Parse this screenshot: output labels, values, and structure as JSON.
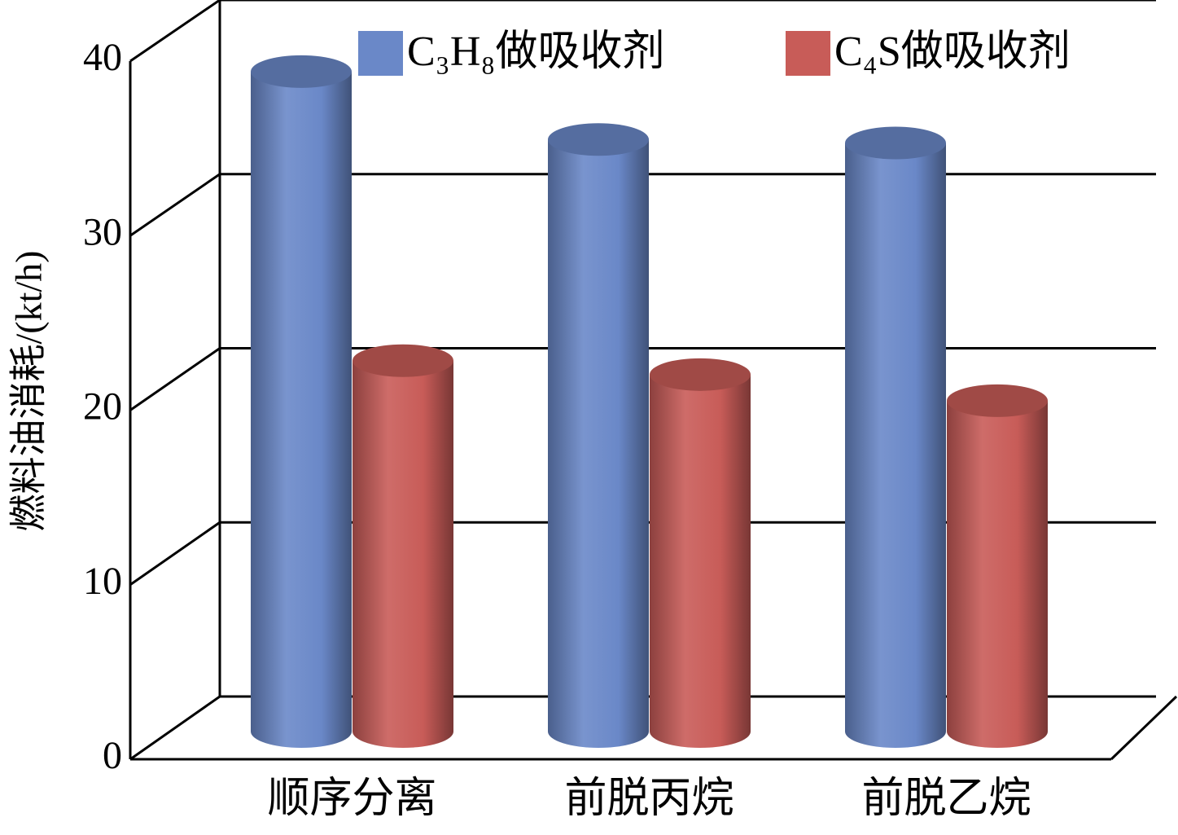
{
  "chart_data": {
    "type": "bar",
    "ylabel": "燃料油消耗/(kt/h)",
    "categories": [
      "顺序分离",
      "前脱丙烷",
      "前脱乙烷"
    ],
    "series": [
      {
        "name": "C₃H₈做吸收剂",
        "color": "#6a88c8",
        "values": [
          37.9,
          34.0,
          33.8
        ]
      },
      {
        "name": "C₄S做吸收剂",
        "color": "#c85c58",
        "values": [
          21.3,
          20.5,
          19.0
        ]
      }
    ],
    "ylim": [
      0,
      40
    ],
    "yticks": [
      0,
      10,
      20,
      30,
      40
    ],
    "grid": true
  }
}
